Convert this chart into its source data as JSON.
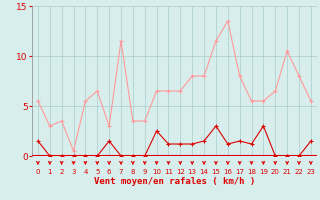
{
  "x": [
    0,
    1,
    2,
    3,
    4,
    5,
    6,
    7,
    8,
    9,
    10,
    11,
    12,
    13,
    14,
    15,
    16,
    17,
    18,
    19,
    20,
    21,
    22,
    23
  ],
  "wind_avg": [
    1.5,
    0.0,
    0.0,
    0.0,
    0.0,
    0.0,
    1.5,
    0.0,
    0.0,
    0.0,
    2.5,
    1.2,
    1.2,
    1.2,
    1.5,
    3.0,
    1.2,
    1.5,
    1.2,
    3.0,
    0.0,
    0.0,
    0.0,
    1.5
  ],
  "wind_gust": [
    5.5,
    3.0,
    3.5,
    0.5,
    5.5,
    6.5,
    3.0,
    11.5,
    3.5,
    3.5,
    6.5,
    6.5,
    6.5,
    8.0,
    8.0,
    11.5,
    13.5,
    8.0,
    5.5,
    5.5,
    6.5,
    10.5,
    8.0,
    5.5
  ],
  "xlabel": "Vent moyen/en rafales ( km/h )",
  "ylim": [
    0,
    15
  ],
  "yticks": [
    0,
    5,
    10,
    15
  ],
  "bg_color": "#d7eeed",
  "grid_color": "#aacccc",
  "avg_color": "#dd0000",
  "gust_color": "#ff9999",
  "line_color": "#dd0000",
  "xlabel_color": "#dd0000",
  "ytick_color": "#dd0000",
  "xtick_color": "#dd0000",
  "arrow_color": "#dd0000"
}
